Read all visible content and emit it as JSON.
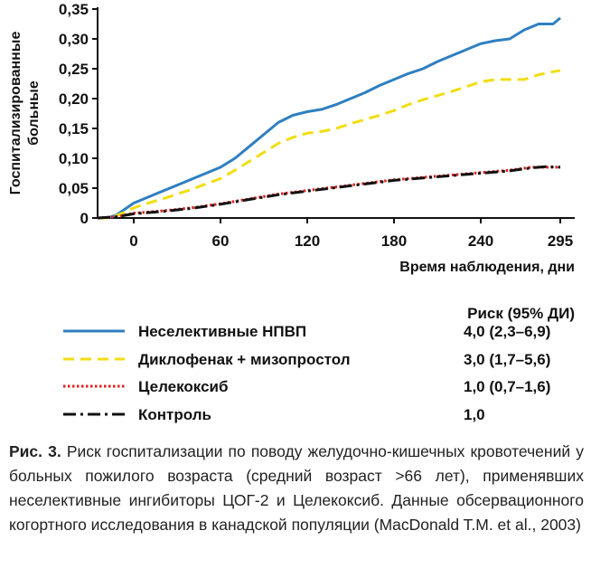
{
  "chart_data": {
    "type": "line",
    "xlabel": "Время наблюдения, дни",
    "ylabel": "Госпитализированные больные",
    "x_ticks": [
      "0",
      "60",
      "120",
      "180",
      "240",
      "295"
    ],
    "y_ticks": [
      "0",
      "0,05",
      "0,10",
      "0,15",
      "0,20",
      "0,25",
      "0,30",
      "0,35"
    ],
    "xlim": [
      -25,
      305
    ],
    "ylim": [
      0,
      0.35
    ],
    "legend_header": "Риск (95% ДИ)",
    "series": [
      {
        "name": "Неселективные НПВП",
        "risk": "4,0 (2,3–6,9)",
        "color": "#2f7fc1",
        "style": "solid",
        "x": [
          -25,
          -18,
          -12,
          -6,
          0,
          10,
          20,
          30,
          40,
          50,
          60,
          70,
          80,
          90,
          100,
          110,
          120,
          130,
          140,
          150,
          160,
          170,
          180,
          190,
          200,
          210,
          220,
          230,
          240,
          250,
          260,
          270,
          280,
          290,
          295
        ],
        "y": [
          0,
          0,
          0.005,
          0.015,
          0.025,
          0.035,
          0.045,
          0.055,
          0.065,
          0.075,
          0.085,
          0.1,
          0.12,
          0.14,
          0.16,
          0.172,
          0.178,
          0.182,
          0.19,
          0.2,
          0.21,
          0.222,
          0.232,
          0.242,
          0.25,
          0.262,
          0.272,
          0.282,
          0.292,
          0.297,
          0.3,
          0.315,
          0.325,
          0.325,
          0.335
        ]
      },
      {
        "name": "Диклофенак + мизопростол",
        "risk": "3,0 (1,7–5,6)",
        "color": "#f2dd12",
        "style": "dashed",
        "x": [
          -25,
          -18,
          -12,
          -6,
          0,
          10,
          20,
          30,
          40,
          50,
          60,
          70,
          80,
          90,
          100,
          110,
          120,
          130,
          140,
          150,
          160,
          170,
          180,
          190,
          200,
          210,
          220,
          230,
          240,
          250,
          260,
          270,
          280,
          290,
          295
        ],
        "y": [
          0,
          0,
          0.004,
          0.01,
          0.017,
          0.025,
          0.032,
          0.04,
          0.048,
          0.057,
          0.066,
          0.08,
          0.095,
          0.11,
          0.125,
          0.135,
          0.142,
          0.145,
          0.15,
          0.158,
          0.165,
          0.172,
          0.18,
          0.19,
          0.198,
          0.205,
          0.212,
          0.22,
          0.228,
          0.232,
          0.232,
          0.232,
          0.24,
          0.245,
          0.247
        ]
      },
      {
        "name": "Целекоксиб",
        "risk": "1,0 (0,7–1,6)",
        "color": "#e02020",
        "style": "dotted",
        "x": [
          -25,
          -12,
          0,
          20,
          40,
          60,
          80,
          100,
          120,
          140,
          160,
          180,
          200,
          220,
          240,
          260,
          275,
          285,
          295
        ],
        "y": [
          0,
          0.002,
          0.008,
          0.012,
          0.017,
          0.024,
          0.032,
          0.04,
          0.046,
          0.052,
          0.058,
          0.064,
          0.068,
          0.072,
          0.076,
          0.08,
          0.085,
          0.085,
          0.085
        ]
      },
      {
        "name": "Контроль",
        "risk": "1,0",
        "color": "#111111",
        "style": "dashdot",
        "x": [
          -25,
          -12,
          0,
          20,
          40,
          60,
          80,
          100,
          120,
          140,
          160,
          180,
          200,
          220,
          240,
          260,
          275,
          285,
          295
        ],
        "y": [
          0,
          0.002,
          0.007,
          0.011,
          0.016,
          0.023,
          0.031,
          0.039,
          0.045,
          0.051,
          0.057,
          0.063,
          0.067,
          0.071,
          0.075,
          0.079,
          0.084,
          0.086,
          0.085
        ]
      }
    ],
    "grid": false
  },
  "caption": {
    "label": "Рис. 3.",
    "text": "Риск госпитализации по поводу желудочно-кишечных кровотечений у больных пожилого возраста (средний возраст >66 лет), применявших неселективные ингибиторы ЦОГ-2 и Целекоксиб. Данные обсервационного когортного исследования в канадской популяции (MacDonald T.M. et al., 2003)"
  }
}
